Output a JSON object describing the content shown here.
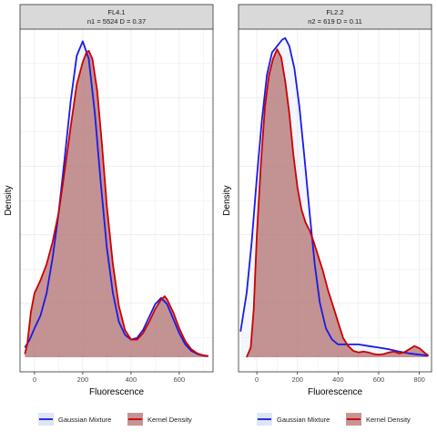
{
  "chart_data": [
    {
      "type": "area",
      "strip_title": "FL4.1",
      "strip_subtitle": "n1 = 5524 D = 0.37",
      "xlabel": "Fluorescence",
      "ylabel": "Density",
      "xlim": [
        -60,
        740
      ],
      "ylim": [
        0,
        1.0
      ],
      "x_ticks": [
        0,
        200,
        400,
        600
      ],
      "grid": true,
      "legend_position": "bottom",
      "series": [
        {
          "name": "Gaussian Mixture",
          "role": "line",
          "color": "#1a1ae6",
          "x": [
            -40,
            -20,
            0,
            25,
            50,
            75,
            100,
            125,
            150,
            175,
            200,
            225,
            250,
            275,
            300,
            325,
            350,
            375,
            400,
            425,
            450,
            475,
            500,
            525,
            550,
            575,
            600,
            625,
            650,
            675,
            700,
            720
          ],
          "y": [
            0.03,
            0.055,
            0.09,
            0.13,
            0.2,
            0.31,
            0.45,
            0.62,
            0.8,
            0.94,
            0.985,
            0.93,
            0.76,
            0.54,
            0.34,
            0.2,
            0.11,
            0.07,
            0.055,
            0.06,
            0.085,
            0.125,
            0.165,
            0.185,
            0.165,
            0.12,
            0.075,
            0.04,
            0.02,
            0.01,
            0.005,
            0.003
          ]
        },
        {
          "name": "Kernel Density",
          "role": "filled",
          "color": "#cc0000",
          "fill": "#b37070",
          "x": [
            -40,
            -30,
            -15,
            0,
            25,
            50,
            75,
            100,
            125,
            150,
            175,
            200,
            215,
            225,
            240,
            260,
            280,
            300,
            325,
            350,
            375,
            400,
            425,
            450,
            475,
            500,
            525,
            540,
            550,
            575,
            600,
            625,
            650,
            675,
            700,
            720
          ],
          "y": [
            0.01,
            0.04,
            0.14,
            0.2,
            0.24,
            0.29,
            0.36,
            0.45,
            0.58,
            0.72,
            0.85,
            0.92,
            0.95,
            0.955,
            0.93,
            0.83,
            0.66,
            0.47,
            0.29,
            0.16,
            0.085,
            0.055,
            0.055,
            0.075,
            0.11,
            0.15,
            0.18,
            0.19,
            0.18,
            0.14,
            0.09,
            0.05,
            0.025,
            0.012,
            0.006,
            0.004
          ]
        }
      ]
    },
    {
      "type": "area",
      "strip_title": "FL2.2",
      "strip_subtitle": "n2 = 619 D = 0.11",
      "xlabel": "Fluorescence",
      "ylabel": "Density",
      "xlim": [
        -90,
        860
      ],
      "ylim": [
        0,
        1.0
      ],
      "x_ticks": [
        0,
        200,
        400,
        600,
        800
      ],
      "grid": true,
      "legend_position": "bottom",
      "series": [
        {
          "name": "Gaussian Mixture",
          "role": "line",
          "color": "#1a1ae6",
          "x": [
            -80,
            -50,
            -25,
            0,
            25,
            50,
            75,
            100,
            125,
            140,
            160,
            185,
            210,
            235,
            260,
            285,
            310,
            340,
            370,
            400,
            450,
            500,
            550,
            600,
            650,
            700,
            750,
            800,
            840
          ],
          "y": [
            0.08,
            0.2,
            0.36,
            0.56,
            0.74,
            0.88,
            0.95,
            0.97,
            0.99,
            0.995,
            0.97,
            0.9,
            0.78,
            0.62,
            0.45,
            0.29,
            0.17,
            0.09,
            0.055,
            0.04,
            0.04,
            0.04,
            0.035,
            0.03,
            0.025,
            0.018,
            0.012,
            0.008,
            0.005
          ]
        },
        {
          "name": "Kernel Density",
          "role": "filled",
          "color": "#cc0000",
          "fill": "#b37070",
          "x": [
            -50,
            -30,
            -15,
            0,
            20,
            40,
            60,
            80,
            100,
            120,
            140,
            160,
            180,
            200,
            220,
            240,
            260,
            280,
            300,
            325,
            350,
            375,
            400,
            425,
            450,
            475,
            500,
            525,
            550,
            575,
            600,
            625,
            650,
            675,
            700,
            725,
            750,
            775,
            800,
            830,
            845
          ],
          "y": [
            0.0,
            0.03,
            0.15,
            0.38,
            0.6,
            0.78,
            0.88,
            0.93,
            0.96,
            0.935,
            0.86,
            0.76,
            0.63,
            0.53,
            0.46,
            0.42,
            0.395,
            0.36,
            0.32,
            0.27,
            0.21,
            0.16,
            0.11,
            0.06,
            0.035,
            0.02,
            0.015,
            0.018,
            0.015,
            0.01,
            0.008,
            0.01,
            0.015,
            0.018,
            0.012,
            0.015,
            0.025,
            0.035,
            0.028,
            0.012,
            0.005
          ]
        }
      ]
    }
  ],
  "legend": {
    "items": [
      {
        "label": "Gaussian Mixture",
        "line_color": "#1a1ae6",
        "fill": "#dde6f7"
      },
      {
        "label": "Kernel Density",
        "line_color": "#cc0000",
        "fill": "#b37070"
      }
    ]
  },
  "colors": {
    "strip_background": "#d9d9d9",
    "panel_border": "#333333",
    "grid": "#ebebeb",
    "axis_text": "#4d4d4d"
  }
}
